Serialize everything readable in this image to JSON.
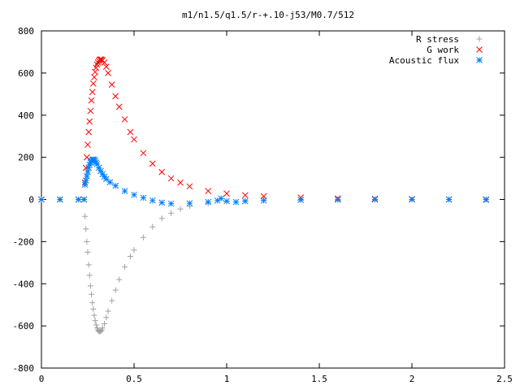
{
  "chart_data": {
    "type": "scatter",
    "title": "m1/n1.5/q1.5/r-+.10-j53/M0.7/512",
    "xlabel": "",
    "ylabel": "",
    "xlim": [
      0,
      2.5
    ],
    "ylim": [
      -800,
      800
    ],
    "x_ticks": [
      "0",
      "0.5",
      "1",
      "1.5",
      "2",
      "2.5"
    ],
    "y_ticks": [
      "800",
      "600",
      "400",
      "200",
      "0",
      "-200",
      "-400",
      "-600",
      "-800"
    ],
    "grid": false,
    "legend_position": "top-right",
    "series": [
      {
        "name": "R stress",
        "marker": "plus",
        "color": "#a0a0a0",
        "x": [
          0.0,
          0.1,
          0.2,
          0.23,
          0.235,
          0.24,
          0.245,
          0.25,
          0.255,
          0.26,
          0.265,
          0.27,
          0.275,
          0.28,
          0.285,
          0.29,
          0.295,
          0.3,
          0.305,
          0.31,
          0.315,
          0.32,
          0.325,
          0.33,
          0.34,
          0.35,
          0.36,
          0.38,
          0.4,
          0.42,
          0.45,
          0.48,
          0.5,
          0.55,
          0.6,
          0.65,
          0.7,
          0.75,
          0.8,
          0.9,
          1.0,
          1.1,
          1.2,
          1.4,
          1.6,
          1.8,
          2.0,
          2.2,
          2.4
        ],
        "y": [
          0,
          0,
          0,
          0,
          -80,
          -140,
          -200,
          -250,
          -310,
          -360,
          -410,
          -450,
          -490,
          -520,
          -550,
          -575,
          -595,
          -610,
          -620,
          -625,
          -628,
          -625,
          -620,
          -610,
          -590,
          -560,
          -530,
          -480,
          -430,
          -380,
          -320,
          -270,
          -240,
          -180,
          -130,
          -90,
          -65,
          -45,
          -32,
          -18,
          -10,
          -6,
          -4,
          -2,
          -1,
          -1,
          0,
          0,
          0
        ]
      },
      {
        "name": "G work",
        "marker": "cross",
        "color": "#ff0000",
        "x": [
          0.0,
          0.1,
          0.2,
          0.23,
          0.235,
          0.24,
          0.245,
          0.25,
          0.255,
          0.26,
          0.265,
          0.27,
          0.275,
          0.28,
          0.285,
          0.29,
          0.295,
          0.3,
          0.305,
          0.31,
          0.315,
          0.32,
          0.325,
          0.33,
          0.34,
          0.35,
          0.36,
          0.38,
          0.4,
          0.42,
          0.45,
          0.48,
          0.5,
          0.55,
          0.6,
          0.65,
          0.7,
          0.75,
          0.8,
          0.9,
          1.0,
          1.1,
          1.2,
          1.4,
          1.6,
          1.8,
          2.0,
          2.2,
          2.4
        ],
        "y": [
          0,
          0,
          0,
          0,
          80,
          150,
          200,
          260,
          320,
          370,
          420,
          470,
          510,
          550,
          580,
          605,
          625,
          640,
          650,
          658,
          663,
          665,
          663,
          660,
          650,
          630,
          600,
          545,
          490,
          440,
          380,
          320,
          285,
          220,
          170,
          130,
          100,
          80,
          62,
          40,
          28,
          20,
          15,
          9,
          5,
          3,
          2,
          0,
          -2
        ]
      },
      {
        "name": "Acoustic flux",
        "marker": "star",
        "color": "#0080ff",
        "x": [
          0.0,
          0.1,
          0.2,
          0.23,
          0.235,
          0.24,
          0.245,
          0.25,
          0.255,
          0.26,
          0.265,
          0.27,
          0.275,
          0.28,
          0.285,
          0.29,
          0.295,
          0.3,
          0.31,
          0.32,
          0.33,
          0.34,
          0.35,
          0.37,
          0.4,
          0.45,
          0.5,
          0.55,
          0.6,
          0.65,
          0.7,
          0.8,
          0.9,
          0.95,
          0.97,
          1.0,
          1.05,
          1.1,
          1.2,
          1.4,
          1.6,
          1.8,
          2.0,
          2.2,
          2.4
        ],
        "y": [
          0,
          0,
          0,
          0,
          70,
          90,
          110,
          130,
          150,
          165,
          175,
          183,
          188,
          190,
          188,
          183,
          175,
          168,
          150,
          135,
          120,
          108,
          97,
          82,
          65,
          40,
          22,
          8,
          -5,
          -15,
          -20,
          -18,
          -12,
          -5,
          5,
          -8,
          -12,
          -8,
          -5,
          -2,
          -1,
          0,
          0,
          0,
          0
        ]
      }
    ]
  }
}
